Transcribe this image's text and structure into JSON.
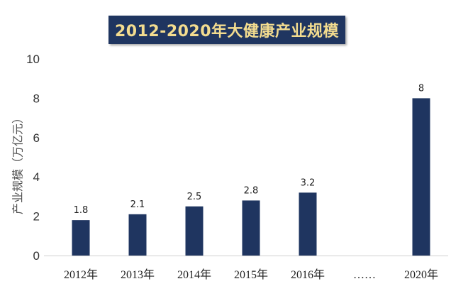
{
  "chart_data": {
    "type": "bar",
    "title": "2012-2020年大健康产业规模",
    "ylabel": "产业规模（万亿元）",
    "xlabel": "",
    "categories": [
      "2012年",
      "2013年",
      "2014年",
      "2015年",
      "2016年",
      "……",
      "2020年"
    ],
    "values": [
      1.8,
      2.1,
      2.5,
      2.8,
      3.2,
      null,
      8
    ],
    "data_labels": [
      "1.8",
      "2.1",
      "2.5",
      "2.8",
      "3.2",
      "",
      "8"
    ],
    "ylim": [
      0,
      10
    ],
    "yticks": [
      "0",
      "2",
      "4",
      "6",
      "8",
      "10"
    ],
    "grid": false,
    "bar_color": "#1f3560"
  }
}
